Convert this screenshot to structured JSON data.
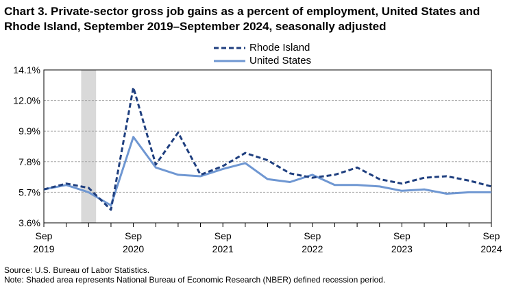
{
  "title": "Chart 3. Private-sector gross job gains as a percent of employment, United States and Rhode Island, September 2019–September 2024, seasonally adjusted",
  "source": "Source: U.S. Bureau of Labor Statistics.",
  "note": "Note: Shaded area represents National Bureau of Economic Research (NBER) defined recession period.",
  "chart_data": {
    "type": "line",
    "x": [
      "Sep 2019",
      "Dec 2019",
      "Mar 2020",
      "Jun 2020",
      "Sep 2020",
      "Dec 2020",
      "Mar 2021",
      "Jun 2021",
      "Sep 2021",
      "Dec 2021",
      "Mar 2022",
      "Jun 2022",
      "Sep 2022",
      "Dec 2022",
      "Mar 2023",
      "Jun 2023",
      "Sep 2023",
      "Dec 2023",
      "Mar 2024",
      "Jun 2024",
      "Sep 2024"
    ],
    "series": [
      {
        "name": "Rhode Island",
        "style": "dashed",
        "color": "#1f3f7f",
        "values": [
          5.9,
          6.3,
          6.0,
          4.5,
          12.9,
          7.6,
          9.8,
          6.9,
          7.5,
          8.4,
          7.9,
          7.0,
          6.7,
          6.9,
          7.4,
          6.6,
          6.3,
          6.7,
          6.8,
          6.5,
          6.1
        ]
      },
      {
        "name": "United States",
        "style": "solid",
        "color": "#6f97d2",
        "values": [
          5.9,
          6.2,
          5.7,
          4.8,
          9.5,
          7.4,
          6.9,
          6.8,
          7.3,
          7.7,
          6.6,
          6.4,
          6.9,
          6.2,
          6.2,
          6.1,
          5.8,
          5.9,
          5.6,
          5.7,
          5.7
        ]
      }
    ],
    "yticks": [
      "3.6%",
      "5.7%",
      "7.8%",
      "9.9%",
      "12.0%",
      "14.1%"
    ],
    "ylim": [
      3.6,
      14.1
    ],
    "xtick_labels": [
      {
        "month": "Sep",
        "year": "2019"
      },
      {
        "month": "Sep",
        "year": "2020"
      },
      {
        "month": "Sep",
        "year": "2021"
      },
      {
        "month": "Sep",
        "year": "2022"
      },
      {
        "month": "Sep",
        "year": "2023"
      },
      {
        "month": "Sep",
        "year": "2024"
      }
    ],
    "recession": {
      "start": "Feb 2020",
      "end": "Apr 2020",
      "color": "#d9d9d9"
    },
    "grid": true,
    "legend_position": "top-center"
  }
}
